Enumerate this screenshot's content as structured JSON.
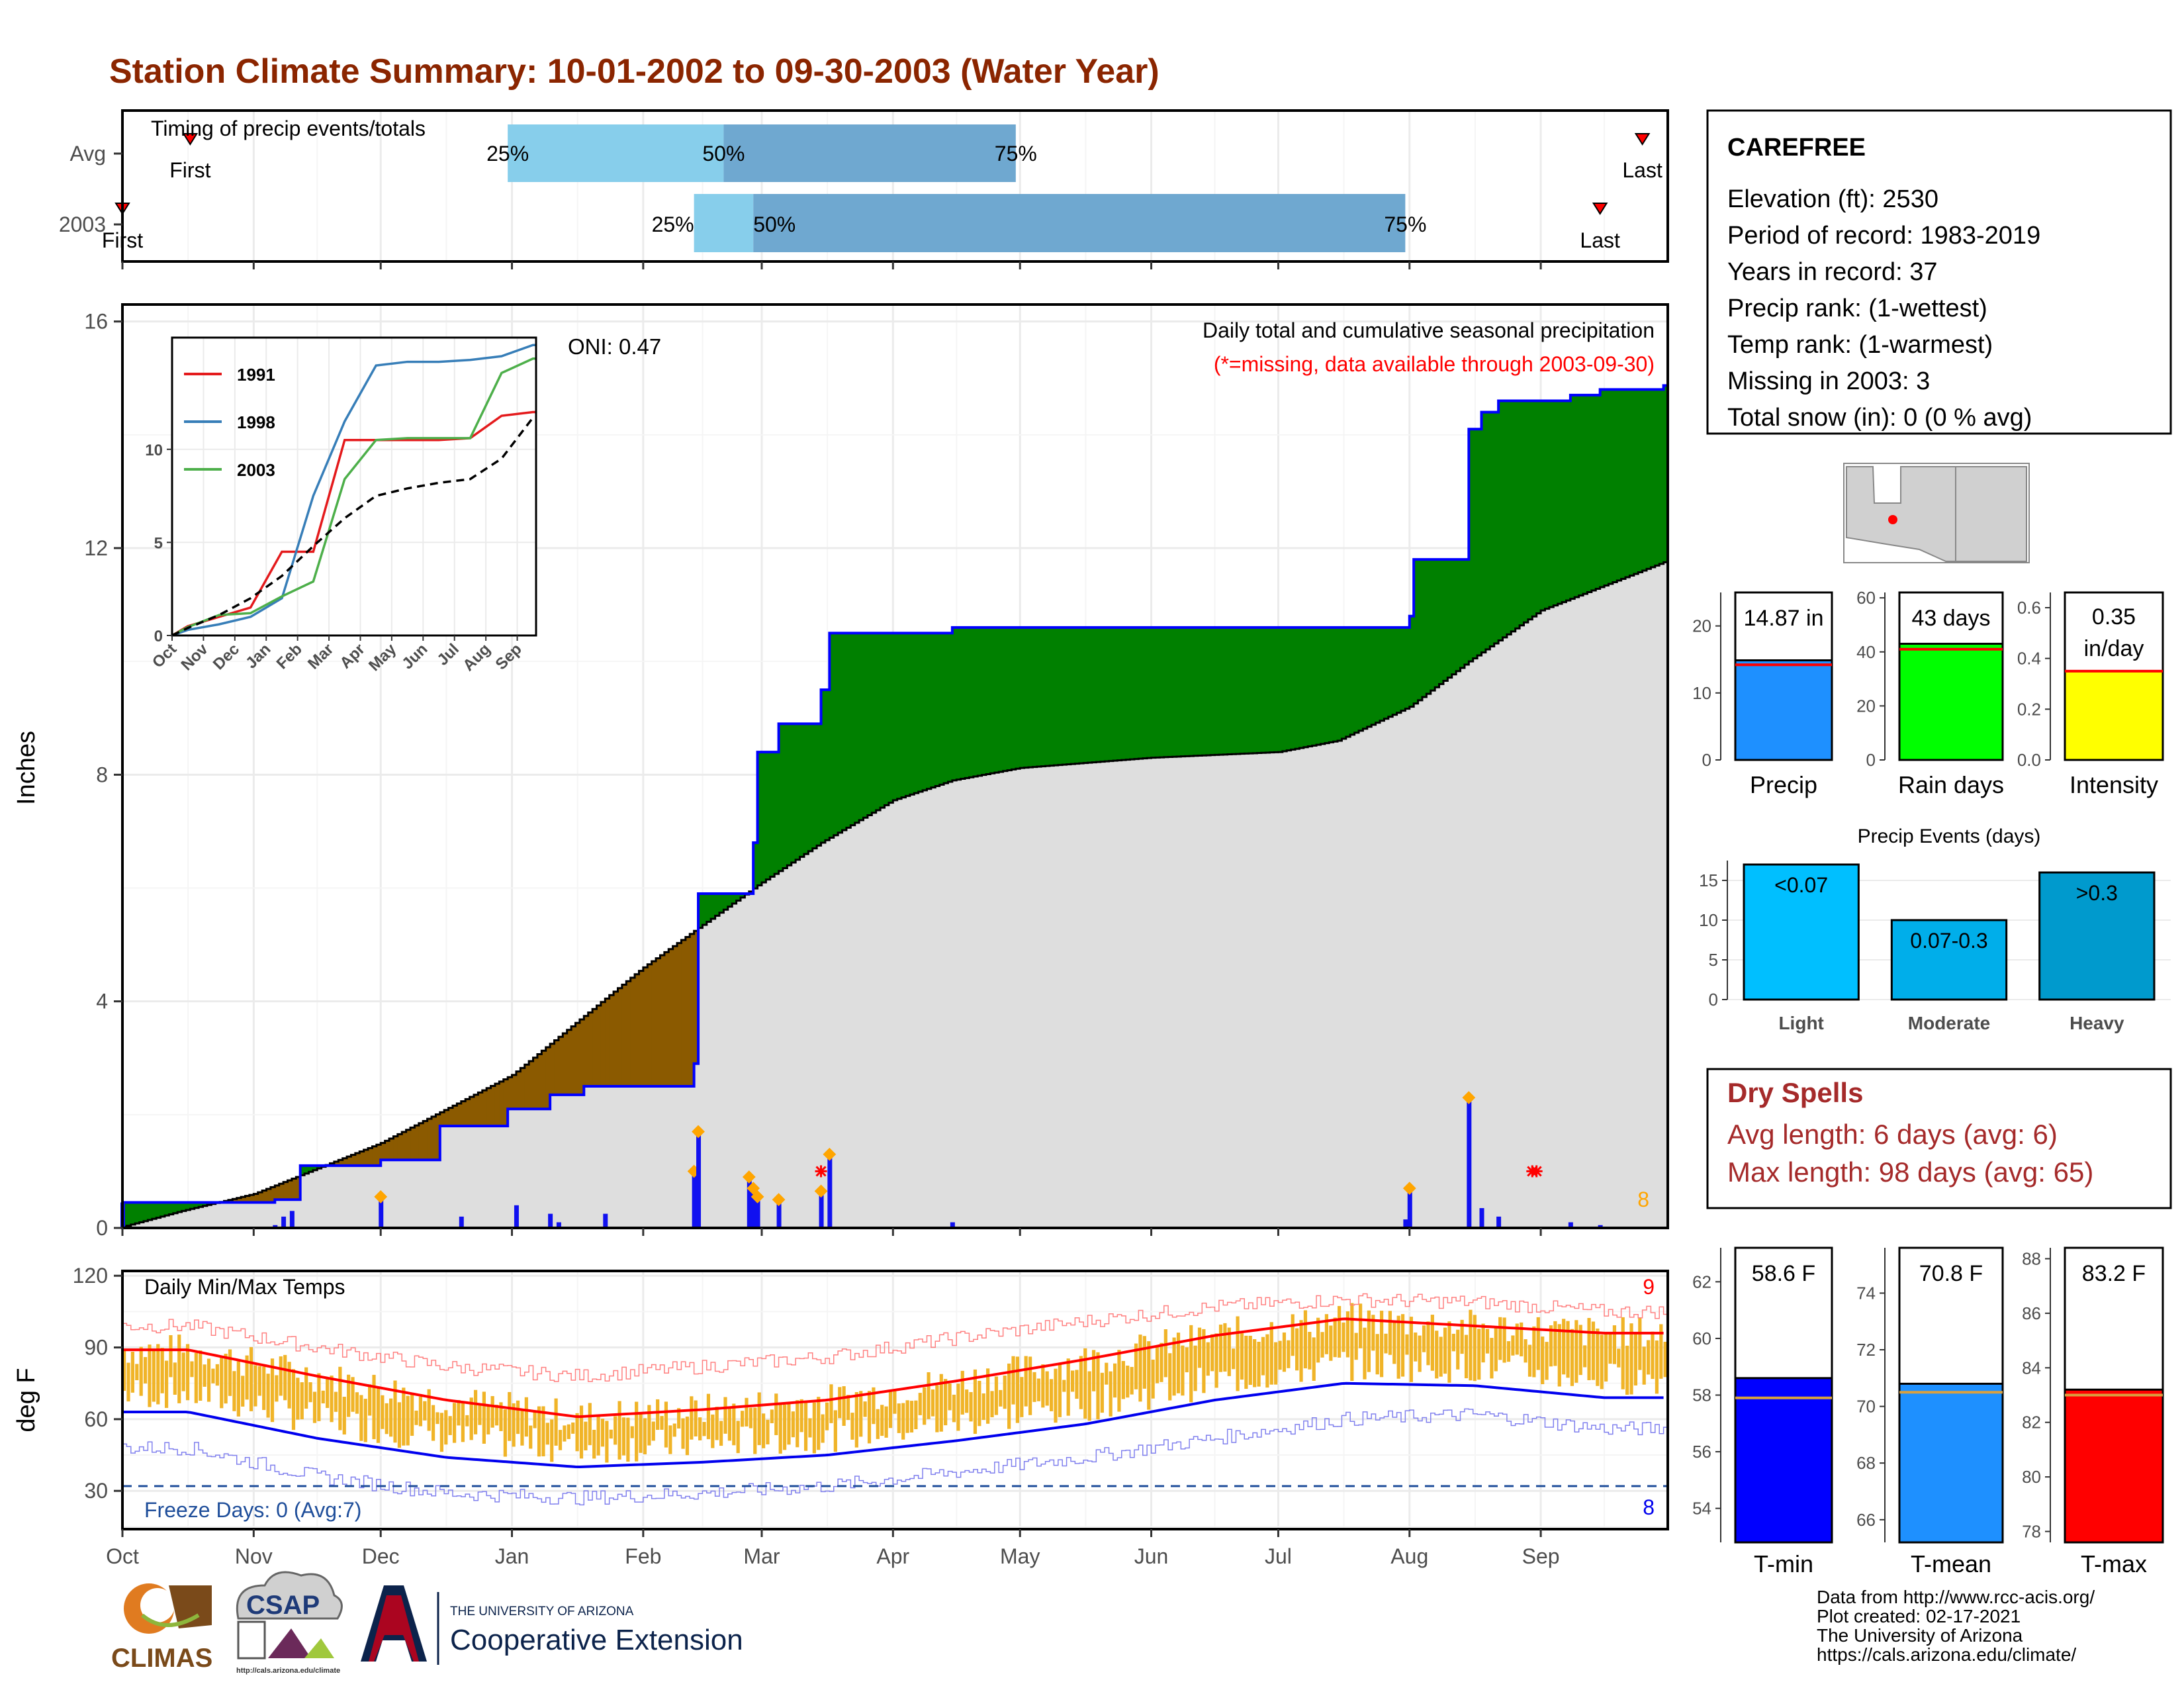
{
  "title": "Station Climate Summary: 10-01-2002 to 09-30-2003 (Water Year)",
  "colors": {
    "title": "#8B2500",
    "q_light": "#87CEEB",
    "q_mid": "#6FA8D0",
    "cum_surplus": "#008000",
    "cum_deficit": "#8B5A00",
    "avg_fill": "#DEDEDE",
    "bar_blue": "#1010F0",
    "marker_orange": "#FFA500",
    "tmax": "#FF0000",
    "tmin": "#0000EE",
    "temp_bar": "#F0B428",
    "freeze_line": "#1F4E9A",
    "dry": "#A52A2A"
  },
  "timing_panel": {
    "title": "Timing of precip events/totals",
    "row_labels": [
      "Avg",
      "2003"
    ],
    "avg": {
      "first": "First",
      "last": "Last",
      "q25": "25%",
      "q50": "50%",
      "q75": "75%",
      "first_date": "2002-10-17",
      "last_date": "2003-09-25",
      "q25_date": "2002-12-31",
      "q50_date": "2003-02-20",
      "q75_date": "2003-04-30"
    },
    "yr": {
      "first": "First",
      "last": "Last",
      "q25": "25%",
      "q50": "50%",
      "q75": "75%",
      "first_date": "2002-10-01",
      "last_date": "2003-09-15",
      "q25_date": "2003-02-13",
      "q50_date": "2003-02-27",
      "q75_date": "2003-07-31"
    }
  },
  "precip_panel": {
    "ylabel": "Inches",
    "yticks": [
      "0",
      "4",
      "8",
      "12",
      "16"
    ],
    "ytick_values": [
      0,
      4,
      8,
      12,
      16
    ],
    "ylim": [
      0,
      16.3
    ],
    "oni": "ONI: 0.47",
    "note_title": "Daily total and cumulative seasonal precipitation",
    "note_missing": "(*=missing, data available through 2003-09-30)",
    "missing_count": "8"
  },
  "inset": {
    "yticks": [
      "0",
      "5",
      "10"
    ],
    "ytick_values": [
      0,
      5,
      10
    ],
    "xticks": [
      "Oct",
      "Nov",
      "Dec",
      "Jan",
      "Feb",
      "Mar",
      "Apr",
      "May",
      "Jun",
      "Jul",
      "Aug",
      "Sep"
    ],
    "legend": [
      "1991",
      "1998",
      "2003"
    ]
  },
  "temp_panel": {
    "ylabel": "deg F",
    "title": "Daily Min/Max Temps",
    "yticks": [
      "30",
      "60",
      "90",
      "120"
    ],
    "ytick_values": [
      30,
      60,
      90,
      120
    ],
    "ylim": [
      14,
      122
    ],
    "freeze": "Freeze Days: 0 (Avg:7)",
    "max_missing": "9",
    "min_missing": "8"
  },
  "months": [
    "Oct",
    "Nov",
    "Dec",
    "Jan",
    "Feb",
    "Mar",
    "Apr",
    "May",
    "Jun",
    "Jul",
    "Aug",
    "Sep"
  ],
  "station": {
    "name": "CAREFREE",
    "lines": [
      "Elevation (ft): 2530",
      "Period of record: 1983-2019",
      "Years in record: 37",
      "Precip rank:  (1-wettest)",
      "Temp rank:  (1-warmest)",
      "Missing in 2003: 3",
      "Total snow (in): 0 (0 % avg)"
    ]
  },
  "mini_precip": {
    "value_label": "14.87 in",
    "label": "Precip",
    "value": 14.87,
    "avg": 14.2,
    "yticks": [
      "0",
      "10",
      "20"
    ],
    "ytick_values": [
      0,
      10,
      20
    ],
    "ylim": [
      0,
      25
    ]
  },
  "mini_raindays": {
    "value_label": "43 days",
    "label": "Rain days",
    "value": 43,
    "avg": 41,
    "yticks": [
      "0",
      "20",
      "40",
      "60"
    ],
    "ytick_values": [
      0,
      20,
      40,
      60
    ],
    "ylim": [
      0,
      62
    ]
  },
  "mini_intensity": {
    "value_label_1": "0.35",
    "value_label_2": "in/day",
    "label": "Intensity",
    "value": 0.35,
    "avg": 0.35,
    "yticks": [
      "0.0",
      "0.2",
      "0.4",
      "0.6"
    ],
    "ytick_values": [
      0.0,
      0.2,
      0.4,
      0.6
    ],
    "ylim": [
      0,
      0.66
    ]
  },
  "events": {
    "title": "Precip Events (days)",
    "categories": [
      "Light",
      "Moderate",
      "Heavy"
    ],
    "bar_labels": [
      "<0.07",
      "0.07-0.3",
      ">0.3"
    ],
    "values": [
      17,
      10,
      16
    ],
    "yticks": [
      "0",
      "5",
      "10",
      "15"
    ],
    "ytick_values": [
      0,
      5,
      10,
      15
    ],
    "ylim": [
      0,
      17.5
    ],
    "colors": [
      "#00BFFF",
      "#00AEEA",
      "#009ACD"
    ]
  },
  "dry_spells": {
    "title": "Dry Spells",
    "avg": "Avg length: 6 days (avg: 6)",
    "max": "Max length: 98 days (avg: 65)"
  },
  "mini_tmin": {
    "value_label": "58.6 F",
    "label": "T-min",
    "value": 58.6,
    "avg": 57.9,
    "yticks": [
      "54",
      "56",
      "58",
      "60",
      "62"
    ],
    "ytick_values": [
      54,
      56,
      58,
      60,
      62
    ],
    "ylim": [
      52.8,
      63.2
    ]
  },
  "mini_tmean": {
    "value_label": "70.8 F",
    "label": "T-mean",
    "value": 70.8,
    "avg": 70.5,
    "yticks": [
      "66",
      "68",
      "70",
      "72",
      "74"
    ],
    "ytick_values": [
      66,
      68,
      70,
      72,
      74
    ],
    "ylim": [
      65.2,
      75.6
    ]
  },
  "mini_tmax": {
    "value_label": "83.2 F",
    "label": "T-max",
    "value": 83.2,
    "avg": 83.0,
    "yticks": [
      "78",
      "80",
      "82",
      "84",
      "86",
      "88"
    ],
    "ytick_values": [
      78,
      80,
      82,
      84,
      86,
      88
    ],
    "ylim": [
      77.6,
      88.4
    ]
  },
  "footer": {
    "lines": [
      "Data from http://www.rcc-acis.org/",
      "Plot created: 02-17-2021",
      "The University of Arizona",
      "https://cals.arizona.edu/climate/"
    ],
    "climas": "CLIMAS",
    "csap": "CSAP",
    "csap_url": "http://cals.arizona.edu/climate",
    "ua_small": "THE UNIVERSITY OF ARIZONA",
    "ua_big": "Cooperative Extension"
  },
  "chart_data": [
    {
      "type": "area",
      "title": "Daily total and cumulative seasonal precipitation",
      "ylabel": "Inches",
      "ylim": [
        0,
        16.3
      ],
      "series": [
        {
          "name": "2003",
          "points": [
            [
              "2002-10-01",
              0.45
            ],
            [
              "2002-11-06",
              0.5
            ],
            [
              "2002-11-12",
              1.1
            ],
            [
              "2002-12-01",
              1.2
            ],
            [
              "2002-12-15",
              1.8
            ],
            [
              "2002-12-31",
              2.1
            ],
            [
              "2003-01-10",
              2.35
            ],
            [
              "2003-01-18",
              2.5
            ],
            [
              "2003-02-13",
              2.9
            ],
            [
              "2003-02-14",
              5.9
            ],
            [
              "2003-02-26",
              5.9
            ],
            [
              "2003-02-27",
              6.8
            ],
            [
              "2003-02-28",
              8.4
            ],
            [
              "2003-03-05",
              8.9
            ],
            [
              "2003-03-15",
              9.5
            ],
            [
              "2003-03-17",
              10.5
            ],
            [
              "2003-04-15",
              10.6
            ],
            [
              "2003-07-31",
              10.6
            ],
            [
              "2003-08-01",
              10.8
            ],
            [
              "2003-08-02",
              11.8
            ],
            [
              "2003-08-15",
              14.1
            ],
            [
              "2003-08-18",
              14.4
            ],
            [
              "2003-08-22",
              14.6
            ],
            [
              "2003-09-08",
              14.7
            ],
            [
              "2003-09-15",
              14.8
            ],
            [
              "2003-09-30",
              14.87
            ]
          ]
        },
        {
          "name": "",
          "points": [
            [
              "2002-10-01",
              0.02
            ],
            [
              "2002-10-15",
              0.3
            ],
            [
              "2002-11-01",
              0.6
            ],
            [
              "2002-12-01",
              1.5
            ],
            [
              "2003-01-01",
              2.7
            ],
            [
              "2003-02-01",
              4.6
            ],
            [
              "2003-02-15",
              5.35
            ],
            [
              "2003-03-01",
              6.1
            ],
            [
              "2003-03-15",
              6.8
            ],
            [
              "2003-04-01",
              7.55
            ],
            [
              "2003-04-15",
              7.9
            ],
            [
              "2003-05-01",
              8.12
            ],
            [
              "2003-06-01",
              8.3
            ],
            [
              "2003-07-01",
              8.4
            ],
            [
              "2003-07-15",
              8.6
            ],
            [
              "2003-08-01",
              9.2
            ],
            [
              "2003-08-15",
              10.0
            ],
            [
              "2003-09-01",
              10.9
            ],
            [
              "2003-09-30",
              11.75
            ]
          ]
        }
      ],
      "daily": [
        [
          "2002-10-01",
          0.45
        ],
        [
          "2002-11-06",
          0.05
        ],
        [
          "2002-11-08",
          0.2
        ],
        [
          "2002-11-10",
          0.3
        ],
        [
          "2002-12-01",
          0.55
        ],
        [
          "2002-12-20",
          0.2
        ],
        [
          "2003-01-02",
          0.4
        ],
        [
          "2003-01-10",
          0.25
        ],
        [
          "2003-01-12",
          0.1
        ],
        [
          "2003-01-23",
          0.25
        ],
        [
          "2003-02-13",
          1.0
        ],
        [
          "2003-02-14",
          1.7
        ],
        [
          "2003-02-26",
          0.9
        ],
        [
          "2003-02-27",
          0.7
        ],
        [
          "2003-02-28",
          0.55
        ],
        [
          "2003-03-05",
          0.5
        ],
        [
          "2003-03-15",
          0.65
        ],
        [
          "2003-03-17",
          1.3
        ],
        [
          "2003-04-15",
          0.1
        ],
        [
          "2003-07-31",
          0.15
        ],
        [
          "2003-08-01",
          0.7
        ],
        [
          "2003-08-15",
          2.3
        ],
        [
          "2003-08-18",
          0.35
        ],
        [
          "2003-08-22",
          0.2
        ],
        [
          "2003-09-08",
          0.1
        ],
        [
          "2003-09-15",
          0.05
        ]
      ]
    },
    {
      "type": "line",
      "title": "",
      "x": [
        "Oct",
        "Nov",
        "Dec",
        "Jan",
        "Feb",
        "Mar",
        "Apr",
        "May",
        "Jun",
        "Jul",
        "Aug",
        "Sep"
      ],
      "ylim": [
        0,
        16
      ],
      "series": [
        {
          "name": "1991",
          "values": [
            0.5,
            1.0,
            1.5,
            4.5,
            4.5,
            10.5,
            10.5,
            10.5,
            10.5,
            10.6,
            11.8,
            12.0
          ]
        },
        {
          "name": "1998",
          "values": [
            0.3,
            0.6,
            1.0,
            2.0,
            7.5,
            11.5,
            14.5,
            14.7,
            14.7,
            14.8,
            15.0,
            15.6
          ]
        },
        {
          "name": "2003",
          "values": [
            0.45,
            1.1,
            1.2,
            2.1,
            2.9,
            8.4,
            10.5,
            10.6,
            10.6,
            10.6,
            14.1,
            14.87
          ]
        },
        {
          "name": "",
          "values": [
            0.4,
            1.1,
            2.0,
            3.2,
            4.8,
            6.3,
            7.5,
            7.9,
            8.2,
            8.4,
            9.5,
            11.7
          ]
        }
      ]
    },
    {
      "type": "line",
      "title": "Daily Min/Max Temps",
      "ylabel": "deg F",
      "ylim": [
        14,
        122
      ],
      "x": [
        "Oct",
        "Nov",
        "Dec",
        "Jan",
        "Feb",
        "Mar",
        "Apr",
        "May",
        "Jun",
        "Jul",
        "Aug",
        "Sep"
      ],
      "series": [
        {
          "name": "",
          "values": [
            89,
            78,
            68,
            61,
            64,
            68,
            76,
            85,
            95,
            102,
            99,
            96
          ]
        },
        {
          "name": "",
          "values": [
            63,
            52,
            44,
            40,
            42,
            45,
            51,
            58,
            68,
            75,
            74,
            69
          ]
        },
        {
          "name": "",
          "values": [
            99,
            90,
            82,
            78,
            82,
            86,
            94,
            101,
            107,
            110,
            109,
            105
          ]
        },
        {
          "name": "",
          "values": [
            48,
            36,
            29,
            27,
            29,
            32,
            38,
            44,
            52,
            60,
            62,
            56
          ]
        }
      ]
    },
    {
      "type": "bar",
      "categories": [
        "Precip"
      ],
      "values": [
        14.87
      ],
      "ylim": [
        0,
        25
      ]
    },
    {
      "type": "bar",
      "categories": [
        "Rain days"
      ],
      "values": [
        43
      ],
      "ylim": [
        0,
        62
      ]
    },
    {
      "type": "bar",
      "categories": [
        "Intensity"
      ],
      "values": [
        0.35
      ],
      "ylim": [
        0,
        0.66
      ]
    },
    {
      "type": "bar",
      "title": "Precip Events (days)",
      "categories": [
        "Light",
        "Moderate",
        "Heavy"
      ],
      "values": [
        17,
        10,
        16
      ],
      "ylim": [
        0,
        17.5
      ]
    },
    {
      "type": "bar",
      "categories": [
        "T-min"
      ],
      "values": [
        58.6
      ],
      "ylim": [
        52.8,
        63.2
      ]
    },
    {
      "type": "bar",
      "categories": [
        "T-mean"
      ],
      "values": [
        70.8
      ],
      "ylim": [
        65.2,
        75.6
      ]
    },
    {
      "type": "bar",
      "categories": [
        "T-max"
      ],
      "values": [
        83.2
      ],
      "ylim": [
        77.6,
        88.4
      ]
    }
  ]
}
